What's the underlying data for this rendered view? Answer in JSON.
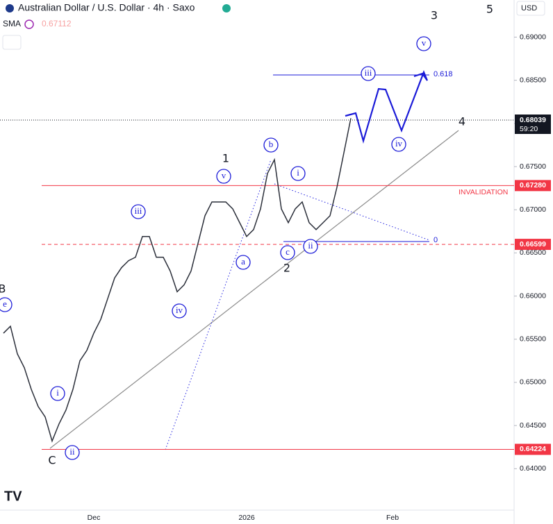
{
  "chart_data": {
    "type": "line",
    "title": "Australian Dollar / U.S. Dollar · 4h · Saxo",
    "indicator": "SMA",
    "indicator_value": "0.67112",
    "currency": "USD",
    "countdown": "59:20",
    "color": "#2a2e39",
    "categories": [
      null,
      null,
      null,
      null,
      null,
      null,
      null,
      null,
      null,
      null,
      null,
      null,
      null,
      "Dec",
      null,
      null,
      null,
      null,
      null,
      null,
      null,
      null,
      null,
      null,
      null,
      null,
      null,
      null,
      null,
      null,
      null,
      null,
      null,
      null,
      null,
      "2026",
      null,
      null,
      null,
      null,
      null,
      null,
      null,
      null,
      null,
      null,
      null,
      null,
      null,
      null,
      null,
      null,
      null,
      null,
      null,
      null,
      "Feb",
      null
    ],
    "values": [
      0.6557,
      0.6565,
      0.6533,
      0.6517,
      0.6492,
      0.6472,
      0.646,
      0.6432,
      0.6452,
      0.6468,
      0.6492,
      0.6525,
      0.6537,
      0.6557,
      0.6573,
      0.6597,
      0.6621,
      0.6633,
      0.6641,
      0.6645,
      0.6669,
      0.6669,
      0.6645,
      0.6645,
      0.6629,
      0.6605,
      0.6613,
      0.6629,
      0.6661,
      0.6693,
      0.6709,
      0.6709,
      0.6709,
      0.6701,
      0.6685,
      0.6669,
      0.6677,
      0.6701,
      0.6742,
      0.6758,
      0.6701,
      0.6685,
      0.6701,
      0.6709,
      0.6685,
      0.6677,
      0.6685,
      0.6693,
      0.6726,
      0.6766,
      0.6806,
      null,
      null,
      null,
      null,
      null,
      null,
      null
    ],
    "ylim": [
      0.6352,
      0.6943
    ],
    "yticks": [
      {
        "value": 0.64,
        "label": "0.64000"
      },
      {
        "value": 0.645,
        "label": "0.64500"
      },
      {
        "value": 0.65,
        "label": "0.65000"
      },
      {
        "value": 0.655,
        "label": "0.65500"
      },
      {
        "value": 0.66,
        "label": "0.66000"
      },
      {
        "value": 0.665,
        "label": "0.66500"
      },
      {
        "value": 0.67,
        "label": "0.67000"
      },
      {
        "value": 0.675,
        "label": "0.67500"
      },
      {
        "value": 0.68,
        "label": "0.68000"
      },
      {
        "value": 0.685,
        "label": "0.68500"
      },
      {
        "value": 0.69,
        "label": "0.69000"
      }
    ],
    "price_lines": [
      {
        "value": 0.68039,
        "label": "0.68039",
        "color": "#131722",
        "style": "dotted"
      },
      {
        "value": 0.6728,
        "label": "0.67280",
        "color": "#f23645",
        "style": "solid"
      },
      {
        "value": 0.66599,
        "label": "0.66599",
        "color": "#f23645",
        "style": "dashed"
      },
      {
        "value": 0.64224,
        "label": "0.64224",
        "color": "#f23645",
        "style": "solid"
      }
    ],
    "annotations": [
      "INVALIDATION",
      "0.618",
      "0"
    ],
    "wave_labels": [
      "3",
      "5",
      "4",
      "1",
      "2",
      "B",
      "C"
    ],
    "circled_labels": [
      "v",
      "iii",
      "iv",
      "b",
      "i",
      "v",
      "iii",
      "a",
      "c",
      "ii",
      "iv",
      "e",
      "i",
      "ii"
    ]
  }
}
